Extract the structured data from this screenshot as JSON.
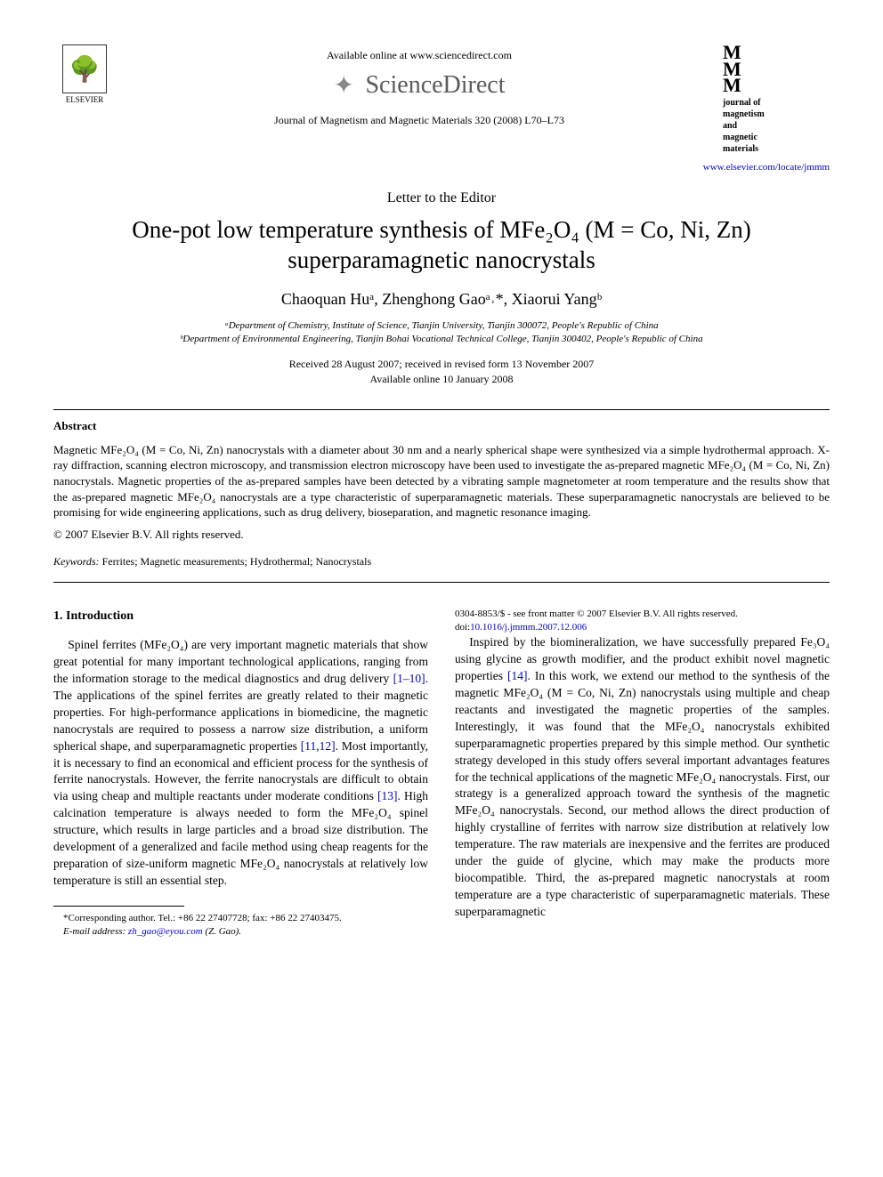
{
  "header": {
    "elsevier_label": "ELSEVIER",
    "available_online": "Available online at www.sciencedirect.com",
    "sciencedirect": "ScienceDirect",
    "journal_ref": "Journal of Magnetism and Magnetic Materials 320 (2008) L70–L73",
    "jmm_mark": "M\nM\nM",
    "jmm_text": "journal of\nmagnetism\nand\nmagnetic\nmaterials",
    "journal_link": "www.elsevier.com/locate/jmmm"
  },
  "article": {
    "type": "Letter to the Editor",
    "title_line1": "One-pot low temperature synthesis of MFe₂O₄ (M = Co, Ni, Zn)",
    "title_line2": "superparamagnetic nanocrystals",
    "authors_html": "Chaoquan Huᵃ, Zhenghong Gaoᵃ˒*, Xiaorui Yangᵇ",
    "affil_a": "ᵃDepartment of Chemistry, Institute of Science, Tianjin University, Tianjin 300072, People's Republic of China",
    "affil_b": "ᵇDepartment of Environmental Engineering, Tianjin Bohai Vocational Technical College, Tianjin 300402, People's Republic of China",
    "received": "Received 28 August 2007; received in revised form 13 November 2007",
    "available": "Available online 10 January 2008"
  },
  "abstract": {
    "heading": "Abstract",
    "body": "Magnetic MFe₂O₄ (M = Co, Ni, Zn) nanocrystals with a diameter about 30 nm and a nearly spherical shape were synthesized via a simple hydrothermal approach. X-ray diffraction, scanning electron microscopy, and transmission electron microscopy have been used to investigate the as-prepared magnetic MFe₂O₄ (M = Co, Ni, Zn) nanocrystals. Magnetic properties of the as-prepared samples have been detected by a vibrating sample magnetometer at room temperature and the results show that the as-prepared magnetic MFe₂O₄ nanocrystals are a type characteristic of superparamagnetic materials. These superparamagnetic nanocrystals are believed to be promising for wide engineering applications, such as drug delivery, bioseparation, and magnetic resonance imaging.",
    "copyright": "© 2007 Elsevier B.V. All rights reserved.",
    "keywords_label": "Keywords:",
    "keywords": " Ferrites; Magnetic measurements; Hydrothermal; Nanocrystals"
  },
  "body": {
    "section1_head": "1. Introduction",
    "p1a": "Spinel ferrites (MFe₂O₄) are very important magnetic materials that show great potential for many important technological applications, ranging from the information storage to the medical diagnostics and drug delivery ",
    "ref1": "[1–10]",
    "p1b": ". The applications of the spinel ferrites are greatly related to their magnetic properties. For high-performance applications in biomedicine, the magnetic nanocrystals are required to possess a narrow size distribution, a uniform spherical shape, and superparamagnetic properties ",
    "ref2": "[11,12]",
    "p1c": ". Most importantly, it is necessary to find an economical and efficient process for the synthesis of ferrite nanocrystals. However, the ferrite nanocrystals are difficult to obtain via using cheap and multiple reactants under moderate conditions ",
    "ref3": "[13]",
    "p1d": ". High calcination temperature is always needed to form the MFe₂O₄ spinel structure, which results in large particles and a broad size distribution. The development of a generalized and facile method using cheap reagents for the preparation of size-uniform magnetic MFe₂O₄ nanocrystals at relatively low temperature is still an essential step.",
    "p2a": "Inspired by the biomineralization, we have successfully prepared Fe₃O₄ using glycine as growth modifier, and the product exhibit novel magnetic properties ",
    "ref4": "[14]",
    "p2b": ". In this work, we extend our method to the synthesis of the magnetic MFe₂O₄ (M = Co, Ni, Zn) nanocrystals using multiple and cheap reactants and investigated the magnetic properties of the samples. Interestingly, it was found that the MFe₂O₄ nanocrystals exhibited superparamagnetic properties prepared by this simple method. Our synthetic strategy developed in this study offers several important advantages features for the technical applications of the magnetic MFe₂O₄ nanocrystals. First, our strategy is a generalized approach toward the synthesis of the magnetic MFe₂O₄ nanocrystals. Second, our method allows the direct production of highly crystalline of ferrites with narrow size distribution at relatively low temperature. The raw materials are inexpensive and the ferrites are produced under the guide of glycine, which may make the products more biocompatible. Third, the as-prepared magnetic nanocrystals at room temperature are a type characteristic of superparamagnetic materials. These superparamagnetic"
  },
  "footnote": {
    "corr": "*Corresponding author. Tel.: +86 22 27407728; fax: +86 22 27403475.",
    "email_label": "E-mail address: ",
    "email": "zh_gao@eyou.com",
    "email_suffix": " (Z. Gao)."
  },
  "bottom": {
    "line1": "0304-8853/$ - see front matter © 2007 Elsevier B.V. All rights reserved.",
    "doi_prefix": "doi:",
    "doi": "10.1016/j.jmmm.2007.12.006"
  },
  "colors": {
    "link": "#0000cc",
    "text": "#000000",
    "logo_gray": "#5a5a5a"
  }
}
